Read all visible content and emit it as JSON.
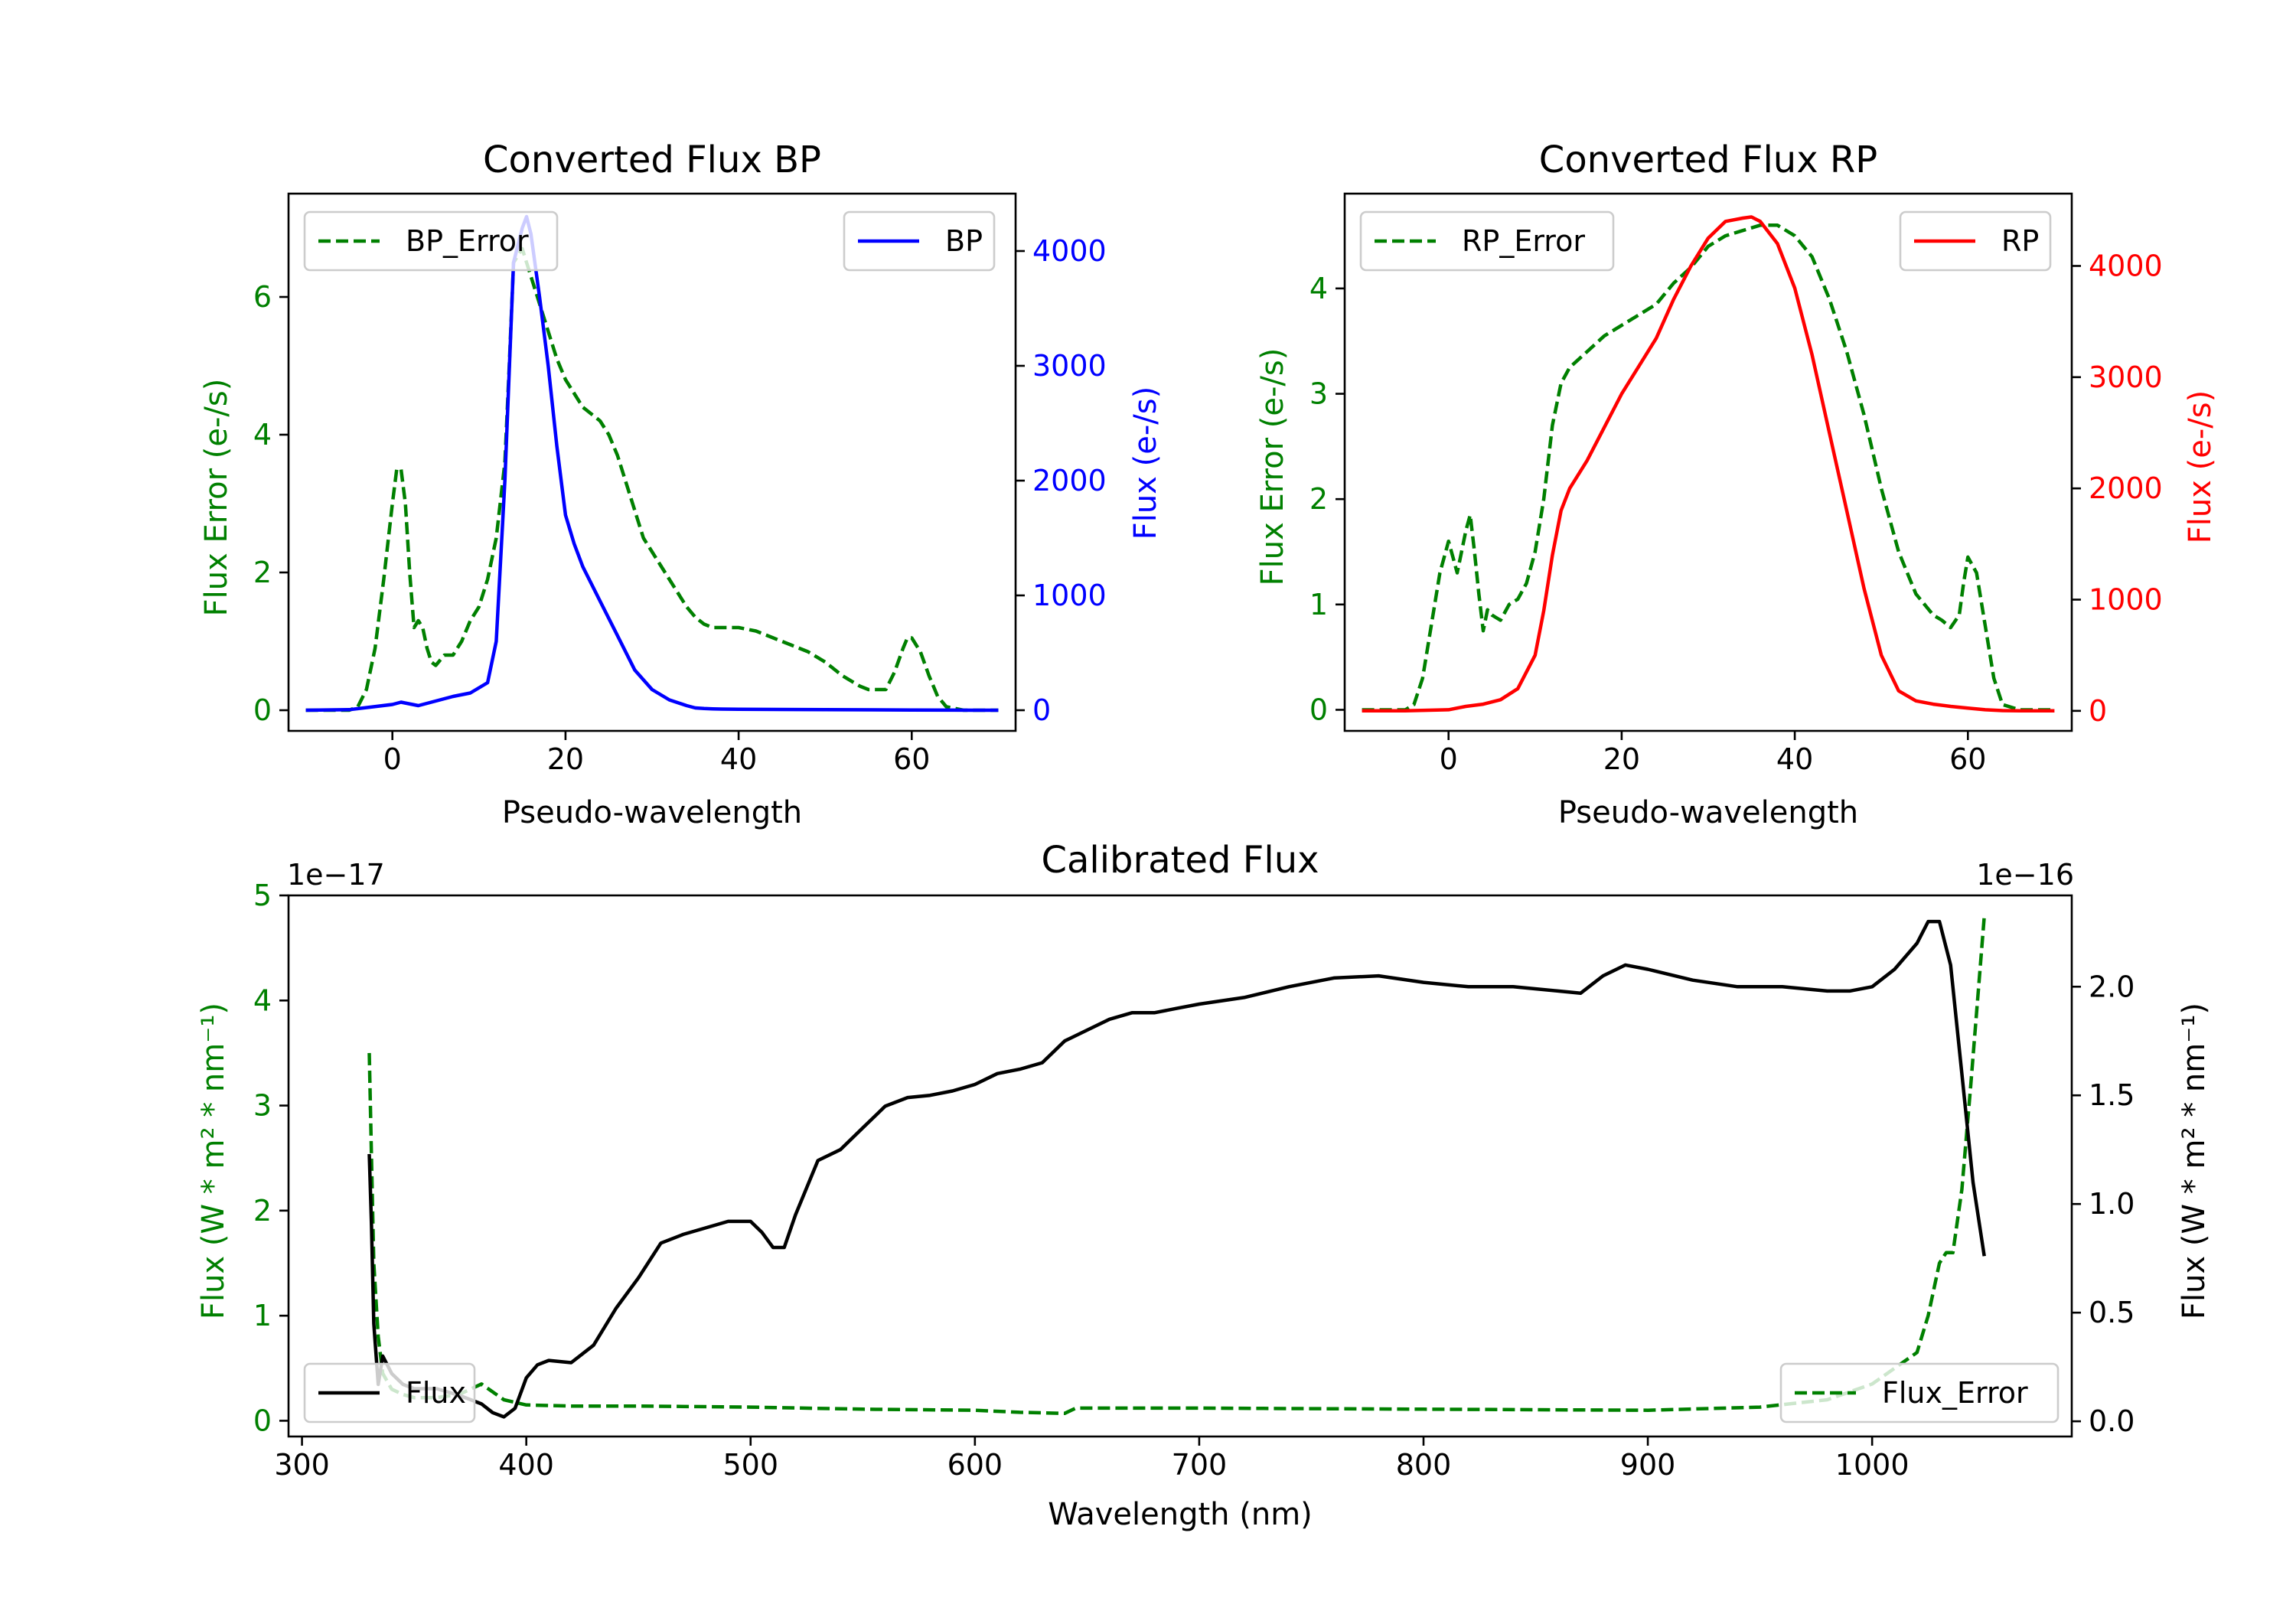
{
  "colors": {
    "error": "#008000",
    "bp": "#0000ff",
    "rp": "#ff0000",
    "flux": "#000000"
  },
  "chart_data": [
    {
      "id": "bp",
      "type": "line",
      "title": "Converted Flux BP",
      "xlabel": "Pseudo-wavelength",
      "ylabel_left": "Flux Error (e-/s)",
      "ylabel_right": "Flux (e-/s)",
      "xlim": [
        -12,
        72
      ],
      "ylim_left": [
        -0.3,
        7.5
      ],
      "ylim_right": [
        -180,
        4500
      ],
      "xticks": [
        0,
        20,
        40,
        60
      ],
      "yticks_left": [
        0,
        2,
        4,
        6
      ],
      "yticks_right": [
        0,
        1000,
        2000,
        3000,
        4000
      ],
      "legend_left": "top-left",
      "legend_right": "top-right",
      "series": [
        {
          "name": "BP_Error",
          "axis": "left",
          "style": "dashed",
          "color": "error",
          "x": [
            -10,
            -5,
            -4,
            -3,
            -2,
            -1,
            0,
            0.5,
            1,
            1.5,
            2,
            2.5,
            3,
            3.5,
            4,
            4.5,
            5,
            6,
            7,
            8,
            9,
            10,
            11,
            12,
            13,
            13.5,
            14,
            14.5,
            15,
            15.5,
            16,
            17,
            18,
            19,
            20,
            21,
            22,
            23,
            24,
            25,
            26,
            27,
            28,
            29,
            30,
            31,
            32,
            33,
            34,
            35,
            36,
            37,
            38,
            40,
            42,
            44,
            46,
            48,
            50,
            52,
            54,
            55,
            56,
            57,
            58,
            59,
            59.5,
            60,
            61,
            62,
            63,
            64,
            66,
            68,
            70
          ],
          "values": [
            0,
            0,
            0.05,
            0.3,
            0.9,
            1.9,
            3.0,
            3.5,
            3.5,
            3.0,
            2.0,
            1.2,
            1.3,
            1.2,
            0.9,
            0.7,
            0.65,
            0.8,
            0.8,
            1.0,
            1.3,
            1.5,
            1.9,
            2.5,
            3.6,
            5.0,
            6.5,
            6.6,
            6.7,
            6.5,
            6.3,
            5.9,
            5.5,
            5.1,
            4.8,
            4.6,
            4.4,
            4.3,
            4.2,
            4.0,
            3.7,
            3.3,
            2.9,
            2.5,
            2.3,
            2.1,
            1.9,
            1.7,
            1.5,
            1.35,
            1.25,
            1.2,
            1.2,
            1.2,
            1.15,
            1.05,
            0.95,
            0.85,
            0.7,
            0.5,
            0.35,
            0.3,
            0.3,
            0.3,
            0.55,
            0.9,
            1.05,
            1.05,
            0.85,
            0.5,
            0.2,
            0.05,
            0,
            0,
            0
          ]
        },
        {
          "name": "BP",
          "axis": "right",
          "style": "solid",
          "color": "bp",
          "x": [
            -10,
            -5,
            0,
            1,
            3,
            5,
            7,
            9,
            11,
            12,
            13,
            14,
            15,
            15.5,
            16,
            17,
            18,
            19,
            20,
            21,
            22,
            24,
            26,
            28,
            30,
            32,
            34,
            35,
            36,
            37,
            38,
            40,
            50,
            60,
            65,
            70
          ],
          "values": [
            0,
            5,
            50,
            70,
            40,
            80,
            120,
            150,
            240,
            600,
            2000,
            3900,
            4200,
            4300,
            4150,
            3600,
            3000,
            2300,
            1700,
            1450,
            1250,
            950,
            650,
            350,
            180,
            90,
            40,
            20,
            15,
            12,
            10,
            8,
            5,
            2,
            1,
            0
          ]
        }
      ]
    },
    {
      "id": "rp",
      "type": "line",
      "title": "Converted Flux RP",
      "xlabel": "Pseudo-wavelength",
      "ylabel_left": "Flux Error (e-/s)",
      "ylabel_right": "Flux (e-/s)",
      "xlim": [
        -12,
        72
      ],
      "ylim_left": [
        -0.2,
        4.9
      ],
      "ylim_right": [
        -180,
        4650
      ],
      "xticks": [
        0,
        20,
        40,
        60
      ],
      "yticks_left": [
        0,
        1,
        2,
        3,
        4
      ],
      "yticks_right": [
        0,
        1000,
        2000,
        3000,
        4000
      ],
      "legend_left": "top-left",
      "legend_right": "top-right",
      "series": [
        {
          "name": "RP_Error",
          "axis": "left",
          "style": "dashed",
          "color": "error",
          "x": [
            -10,
            -5,
            -4,
            -3,
            -2,
            -1,
            0,
            0.5,
            1,
            1.5,
            2,
            2.5,
            3,
            3.5,
            4,
            4.5,
            5,
            6,
            7,
            8,
            9,
            10,
            11,
            12,
            13,
            14,
            16,
            18,
            20,
            22,
            24,
            26,
            28,
            30,
            32,
            34,
            36,
            38,
            40,
            42,
            44,
            46,
            48,
            50,
            52,
            54,
            56,
            57,
            58,
            59,
            59.5,
            60,
            61,
            62,
            63,
            64,
            66,
            68,
            70
          ],
          "values": [
            0,
            0,
            0.05,
            0.3,
            0.8,
            1.3,
            1.6,
            1.45,
            1.3,
            1.5,
            1.7,
            1.85,
            1.5,
            1.1,
            0.75,
            0.95,
            0.9,
            0.85,
            1.0,
            1.05,
            1.2,
            1.5,
            2.0,
            2.7,
            3.1,
            3.25,
            3.4,
            3.55,
            3.65,
            3.75,
            3.85,
            4.05,
            4.2,
            4.4,
            4.5,
            4.55,
            4.6,
            4.6,
            4.5,
            4.3,
            3.9,
            3.4,
            2.8,
            2.1,
            1.5,
            1.1,
            0.9,
            0.85,
            0.78,
            0.9,
            1.2,
            1.45,
            1.3,
            0.8,
            0.3,
            0.05,
            0,
            0,
            0
          ]
        },
        {
          "name": "RP",
          "axis": "right",
          "style": "solid",
          "color": "rp",
          "x": [
            -10,
            -5,
            0,
            2,
            4,
            6,
            8,
            10,
            11,
            12,
            13,
            14,
            16,
            18,
            20,
            22,
            24,
            26,
            28,
            30,
            32,
            34,
            35,
            36,
            38,
            40,
            42,
            44,
            46,
            48,
            50,
            52,
            54,
            56,
            58,
            60,
            62,
            64,
            66,
            70
          ],
          "values": [
            0,
            0,
            10,
            40,
            60,
            100,
            200,
            500,
            900,
            1400,
            1800,
            2000,
            2250,
            2550,
            2850,
            3100,
            3350,
            3700,
            4000,
            4250,
            4400,
            4430,
            4440,
            4400,
            4200,
            3800,
            3200,
            2500,
            1800,
            1100,
            500,
            180,
            90,
            60,
            40,
            25,
            10,
            2,
            0,
            0
          ]
        }
      ]
    },
    {
      "id": "calibrated",
      "type": "line",
      "title": "Calibrated Flux",
      "xlabel": "Wavelength (nm)",
      "ylabel_left": "Flux (W * m² * nm⁻¹)",
      "ylabel_right": "Flux (W * m² * nm⁻¹)",
      "offset_left": "1e−17",
      "offset_right": "1e−16",
      "xlim": [
        294,
        1089
      ],
      "ylim_left": [
        -0.15,
        5.0
      ],
      "ylim_right": [
        -0.07,
        2.42
      ],
      "xticks": [
        300,
        400,
        500,
        600,
        700,
        800,
        900,
        1000
      ],
      "yticks_left": [
        0,
        1,
        2,
        3,
        4,
        5
      ],
      "yticks_right": [
        0.0,
        0.5,
        1.0,
        1.5,
        2.0
      ],
      "legend_left": "bottom-left",
      "legend_right": "bottom-right",
      "series": [
        {
          "name": "Flux_Error",
          "axis": "left",
          "style": "dashed",
          "color": "error",
          "x": [
            330,
            331,
            332,
            334,
            336,
            340,
            345,
            350,
            360,
            370,
            380,
            390,
            400,
            420,
            450,
            500,
            550,
            600,
            620,
            640,
            645,
            660,
            700,
            800,
            900,
            950,
            980,
            1000,
            1010,
            1020,
            1025,
            1030,
            1033,
            1036,
            1040,
            1044,
            1047,
            1050
          ],
          "values": [
            3.5,
            2.5,
            1.5,
            0.8,
            0.45,
            0.3,
            0.25,
            0.22,
            0.22,
            0.25,
            0.35,
            0.2,
            0.15,
            0.14,
            0.14,
            0.13,
            0.11,
            0.1,
            0.08,
            0.07,
            0.12,
            0.12,
            0.12,
            0.11,
            0.1,
            0.13,
            0.2,
            0.35,
            0.5,
            0.65,
            1.0,
            1.5,
            1.6,
            1.6,
            2.2,
            3.2,
            4.0,
            4.8
          ]
        },
        {
          "name": "Flux",
          "axis": "right",
          "style": "solid",
          "color": "flux",
          "x": [
            330,
            331,
            332,
            334,
            336,
            340,
            345,
            350,
            360,
            370,
            380,
            385,
            390,
            395,
            400,
            405,
            410,
            420,
            430,
            440,
            450,
            460,
            470,
            480,
            490,
            500,
            505,
            510,
            515,
            520,
            530,
            540,
            550,
            560,
            570,
            580,
            590,
            600,
            610,
            620,
            630,
            640,
            650,
            660,
            670,
            680,
            690,
            700,
            720,
            740,
            760,
            780,
            800,
            820,
            840,
            860,
            870,
            880,
            890,
            900,
            920,
            940,
            960,
            980,
            990,
            1000,
            1010,
            1020,
            1025,
            1030,
            1035,
            1040,
            1045,
            1050
          ],
          "values": [
            1.23,
            0.9,
            0.45,
            0.17,
            0.3,
            0.22,
            0.17,
            0.15,
            0.15,
            0.12,
            0.08,
            0.04,
            0.02,
            0.06,
            0.2,
            0.26,
            0.28,
            0.27,
            0.35,
            0.52,
            0.66,
            0.82,
            0.86,
            0.89,
            0.92,
            0.92,
            0.87,
            0.8,
            0.8,
            0.95,
            1.2,
            1.25,
            1.35,
            1.45,
            1.49,
            1.5,
            1.52,
            1.55,
            1.6,
            1.62,
            1.65,
            1.75,
            1.8,
            1.85,
            1.88,
            1.88,
            1.9,
            1.92,
            1.95,
            2.0,
            2.04,
            2.05,
            2.02,
            2.0,
            2.0,
            1.98,
            1.97,
            2.05,
            2.1,
            2.08,
            2.03,
            2.0,
            2.0,
            1.98,
            1.98,
            2.0,
            2.08,
            2.2,
            2.3,
            2.3,
            2.1,
            1.6,
            1.1,
            0.76
          ]
        }
      ]
    }
  ]
}
